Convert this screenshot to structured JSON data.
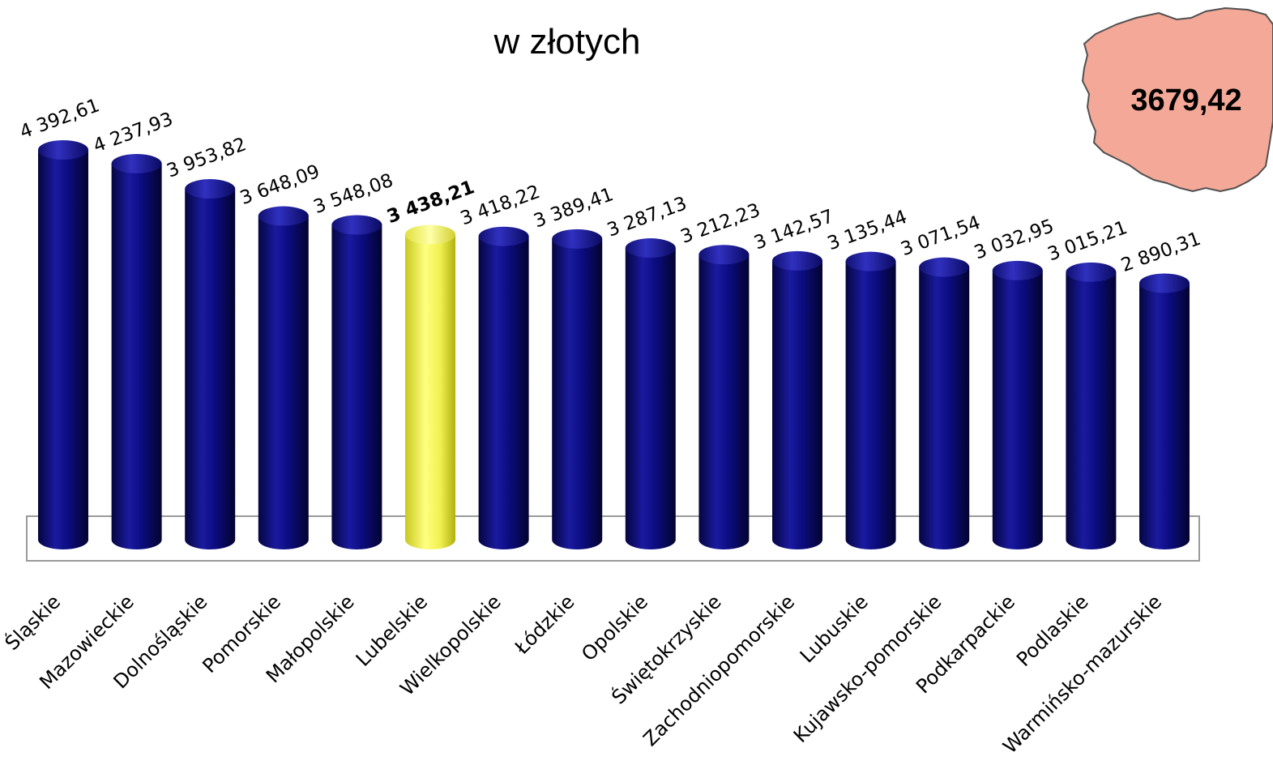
{
  "chart_data": {
    "type": "bar",
    "title": "w złotych",
    "categories": [
      "Śląskie",
      "Mazowieckie",
      "Dolnośląskie",
      "Pomorskie",
      "Małopolskie",
      "Lubelskie",
      "Wielkopolskie",
      "Łódzkie",
      "Opolskie",
      "Świętokrzyskie",
      "Zachodniopomorskie",
      "Lubuskie",
      "Kujawsko-pomorskie",
      "Podkarpackie",
      "Podlaskie",
      "Warmińsko-mazurskie"
    ],
    "values": [
      4392.61,
      4237.93,
      3953.82,
      3648.09,
      3548.08,
      3438.21,
      3418.22,
      3389.41,
      3287.13,
      3212.23,
      3142.57,
      3135.44,
      3071.54,
      3032.95,
      3015.21,
      2890.31
    ],
    "value_labels": [
      "4 392,61",
      "4 237,93",
      "3 953,82",
      "3 648,09",
      "3 548,08",
      "3 438,21",
      "3 418,22",
      "3 389,41",
      "3 287,13",
      "3 212,23",
      "3 142,57",
      "3 135,44",
      "3 071,54",
      "3 032,95",
      "3 015,21",
      "2 890,31"
    ],
    "highlight_index": 5,
    "bar_color": "#0a0a7a",
    "highlight_color": "#f5f55a",
    "ylim": [
      0,
      4392.61
    ],
    "grid": false,
    "national_value": "3679,42",
    "map_color": "#f4a898"
  }
}
